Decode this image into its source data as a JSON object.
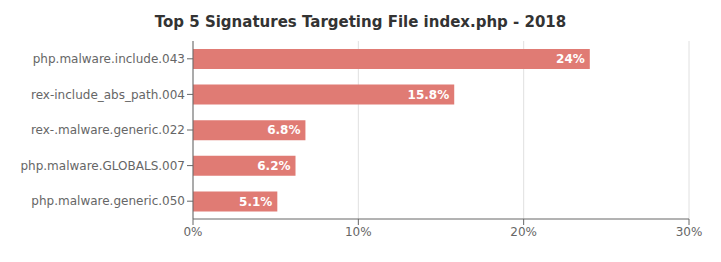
{
  "chart_data": {
    "type": "bar",
    "orientation": "horizontal",
    "title": "Top 5 Signatures Targeting File index.php - 2018",
    "categories": [
      "php.malware.generic.050",
      "php.malware.GLOBALS.007",
      "rex-.malware.generic.022",
      "rex-include_abs_path.004",
      "php.malware.include.043"
    ],
    "values": [
      5.1,
      6.2,
      6.8,
      15.8,
      24.0
    ],
    "value_labels": [
      "5.1%",
      "6.2%",
      "6.8%",
      "15.8%",
      "24%"
    ],
    "color": "#e07b74",
    "xlim": [
      0,
      30
    ],
    "xticks": [
      {
        "value": 0,
        "label": "0%"
      },
      {
        "value": 10,
        "label": "10%"
      },
      {
        "value": 20,
        "label": "20%"
      },
      {
        "value": 30,
        "label": "30%"
      }
    ],
    "grid": true,
    "data_labels": true
  }
}
